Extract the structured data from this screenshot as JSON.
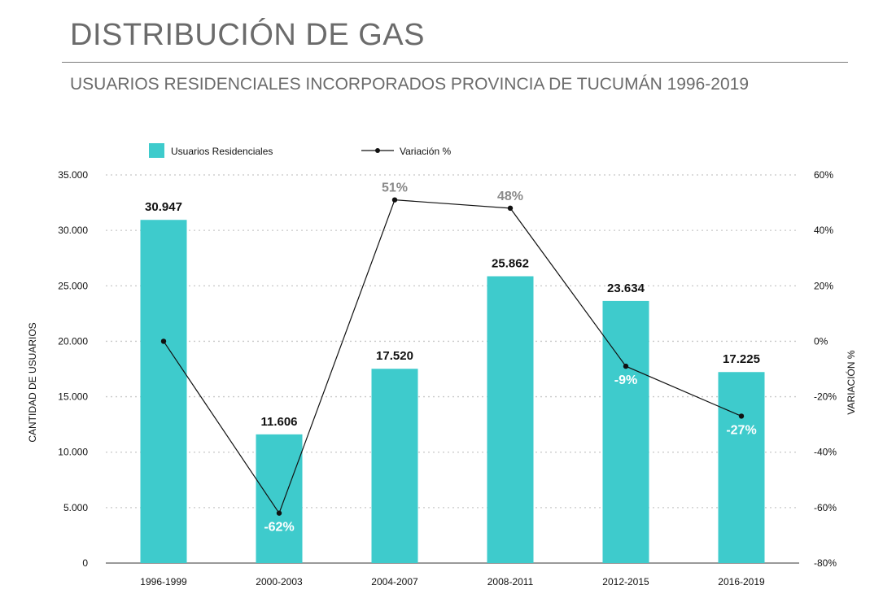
{
  "header": {
    "title": "DISTRIBUCIÓN DE GAS",
    "subtitle": "USUARIOS RESIDENCIALES INCORPORADOS PROVINCIA DE TUCUMÁN 1996-2019"
  },
  "colors": {
    "bar": "#3ecbcc",
    "line": "#111111",
    "text_dark": "#111111",
    "text_grey": "#8a8a8a",
    "text_white": "#ffffff",
    "grid": "#c8c8c8",
    "axis": "#9a9a9a"
  },
  "chart_data": {
    "type": "bar",
    "categories": [
      "1996-1999",
      "2000-2003",
      "2004-2007",
      "2008-2011",
      "2012-2015",
      "2016-2019"
    ],
    "series": [
      {
        "name": "Usuarios Residenciales",
        "type": "bar",
        "axis": "left",
        "values": [
          30947,
          11606,
          17520,
          25862,
          23634,
          17225
        ],
        "labels": [
          "30.947",
          "11.606",
          "17.520",
          "25.862",
          "23.634",
          "17.225"
        ]
      },
      {
        "name": "Variación %",
        "type": "line",
        "axis": "right",
        "values": [
          0,
          -62,
          51,
          48,
          -9,
          -27
        ],
        "labels": [
          "",
          "-62%",
          "51%",
          "48%",
          "-9%",
          "-27%"
        ]
      }
    ],
    "ylabel": "CANTIDAD DE USUARIOS",
    "y2label": "VARIACIÓN %",
    "ylim": [
      0,
      35000
    ],
    "y2lim": [
      -80,
      60
    ],
    "yticks": [
      "0",
      "5.000",
      "10.000",
      "15.000",
      "20.000",
      "25.000",
      "30.000",
      "35.000"
    ],
    "y2ticks": [
      "-80%",
      "-60%",
      "-40%",
      "-20%",
      "0%",
      "20%",
      "40%",
      "60%"
    ],
    "grid": true,
    "legend": "top-left"
  }
}
